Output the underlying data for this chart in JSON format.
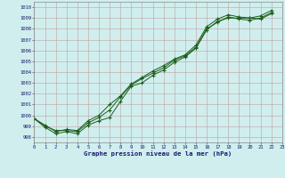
{
  "title": "Graphe pression niveau de la mer (hPa)",
  "background_color": "#d0eeee",
  "grid_major_color": "#b8b8c8",
  "grid_minor_color": "#c8dada",
  "line_color": "#1a5e1a",
  "xlim": [
    0,
    23
  ],
  "ylim": [
    997.5,
    1010.5
  ],
  "yticks": [
    998,
    999,
    1000,
    1001,
    1002,
    1003,
    1004,
    1005,
    1006,
    1007,
    1008,
    1009,
    1010
  ],
  "xticks": [
    0,
    1,
    2,
    3,
    4,
    5,
    6,
    7,
    8,
    9,
    10,
    11,
    12,
    13,
    14,
    15,
    16,
    17,
    18,
    19,
    20,
    21,
    22,
    23
  ],
  "series1_x": [
    0,
    1,
    2,
    3,
    4,
    5,
    6,
    7,
    8,
    9,
    10,
    11,
    12,
    13,
    14,
    15,
    16,
    17,
    18,
    19,
    20,
    21,
    22
  ],
  "series1_y": [
    999.7,
    998.9,
    998.3,
    998.5,
    998.3,
    999.1,
    999.5,
    999.8,
    1001.3,
    1002.7,
    1003.0,
    1003.7,
    1004.2,
    1004.9,
    1005.4,
    1006.2,
    1007.9,
    1008.7,
    1009.0,
    1009.0,
    1009.0,
    1008.9,
    1009.4
  ],
  "series2_x": [
    0,
    1,
    2,
    3,
    4,
    5,
    6,
    7,
    8,
    9,
    10,
    11,
    12,
    13,
    14,
    15,
    16,
    17,
    18,
    19,
    20,
    21,
    22
  ],
  "series2_y": [
    999.7,
    999.0,
    998.6,
    998.6,
    998.5,
    999.3,
    999.8,
    1000.5,
    1001.7,
    1002.8,
    1003.4,
    1003.9,
    1004.4,
    1005.1,
    1005.5,
    1006.3,
    1008.0,
    1008.6,
    1009.1,
    1008.9,
    1008.8,
    1009.0,
    1009.5
  ],
  "series3_x": [
    0,
    1,
    2,
    3,
    4,
    5,
    6,
    7,
    8,
    9,
    10,
    11,
    12,
    13,
    14,
    15,
    16,
    17,
    18,
    19,
    20,
    21,
    22
  ],
  "series3_y": [
    999.7,
    999.1,
    998.5,
    998.7,
    998.6,
    999.5,
    1000.0,
    1001.0,
    1001.8,
    1002.9,
    1003.5,
    1004.1,
    1004.6,
    1005.2,
    1005.6,
    1006.5,
    1008.2,
    1008.9,
    1009.3,
    1009.1,
    1009.0,
    1009.2,
    1009.7
  ]
}
